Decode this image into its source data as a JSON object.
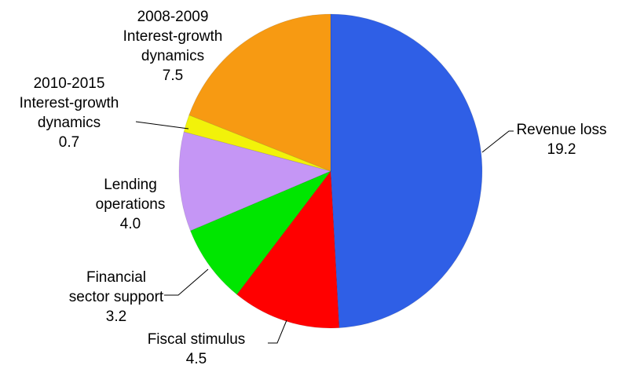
{
  "chart_data": {
    "type": "pie",
    "title": "",
    "legend": "none",
    "slices": [
      {
        "id": "revenue-loss",
        "label_lines": [
          "Revenue loss"
        ],
        "value_label": "19.2",
        "value": 19.2,
        "color": "#2f5fe6"
      },
      {
        "id": "fiscal-stimulus",
        "label_lines": [
          "Fiscal stimulus"
        ],
        "value_label": "4.5",
        "value": 4.5,
        "color": "#ff0000"
      },
      {
        "id": "financial-sector-support",
        "label_lines": [
          "Financial",
          "sector support"
        ],
        "value_label": "3.2",
        "value": 3.2,
        "color": "#00e600"
      },
      {
        "id": "lending-operations",
        "label_lines": [
          "Lending",
          "operations"
        ],
        "value_label": "4.0",
        "value": 4.0,
        "color": "#c596f5"
      },
      {
        "id": "interest-growth-2010-2015",
        "label_lines": [
          "2010-2015",
          "Interest-growth",
          "dynamics"
        ],
        "value_label": "0.7",
        "value": 0.7,
        "color": "#f2f20a"
      },
      {
        "id": "interest-growth-2008-2009",
        "label_lines": [
          "2008-2009",
          "Interest-growth",
          "dynamics"
        ],
        "value_label": "7.5",
        "value": 7.5,
        "color": "#f79a12"
      }
    ]
  }
}
